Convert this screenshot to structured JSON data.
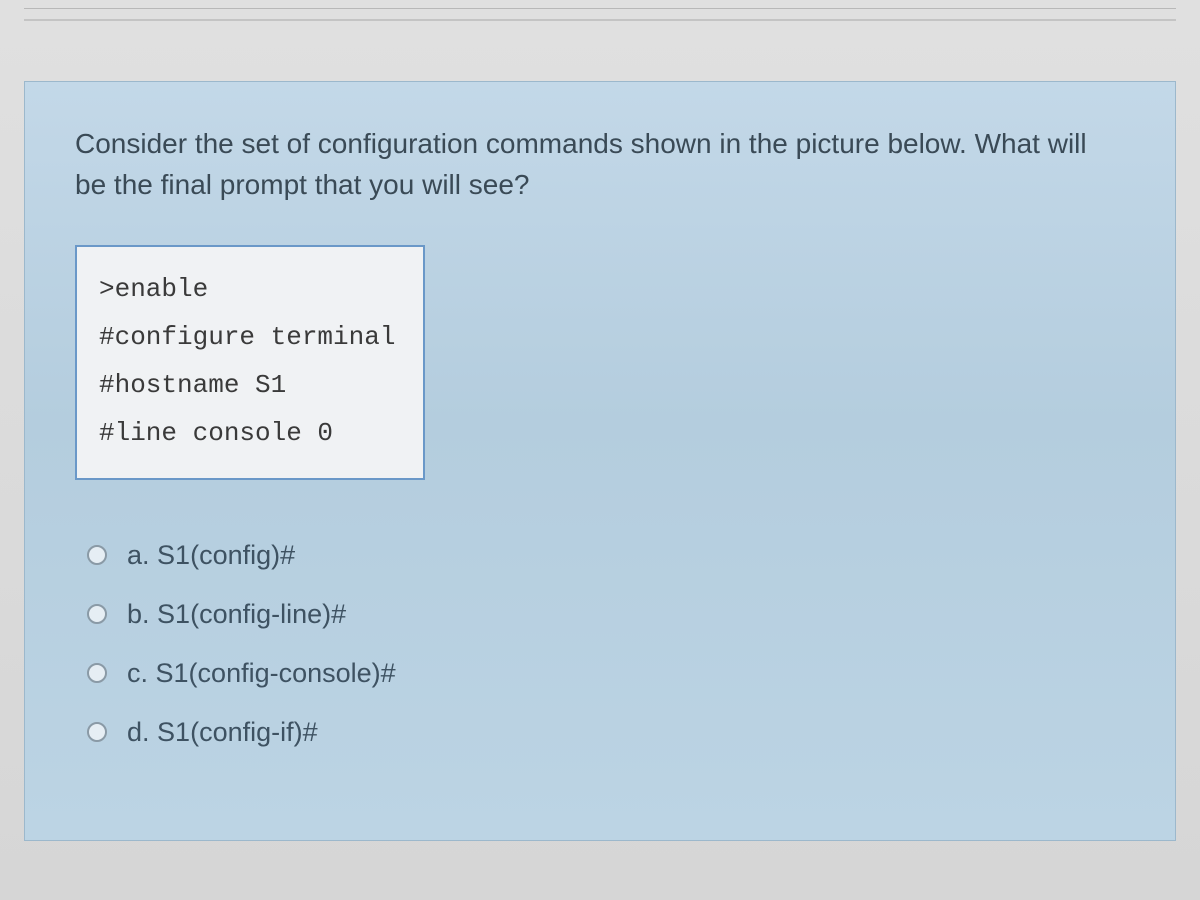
{
  "question": {
    "prompt": "Consider the set of configuration commands shown in the picture below. What will be the final prompt that you will see?",
    "code_lines": [
      ">enable",
      "#configure terminal",
      "#hostname S1",
      "#line console 0"
    ],
    "options": [
      {
        "letter": "a.",
        "text": "S1(config)#"
      },
      {
        "letter": "b.",
        "text": "S1(config-line)#"
      },
      {
        "letter": "c.",
        "text": "S1(config-console)#"
      },
      {
        "letter": "d.",
        "text": "S1(config-if)#"
      }
    ]
  },
  "styles": {
    "card_bg_top": "#c3d8e8",
    "card_bg_bottom": "#bcd4e4",
    "card_border": "#9cb8cc",
    "codebox_bg": "#f0f2f4",
    "codebox_border": "#6a98c8",
    "question_text_color": "#3a4a56",
    "option_text_color": "#3e5262",
    "code_text_color": "#3a3a3a",
    "question_fontsize": 28,
    "code_fontsize": 26,
    "option_fontsize": 27,
    "page_bg": "#d8d8d8"
  }
}
